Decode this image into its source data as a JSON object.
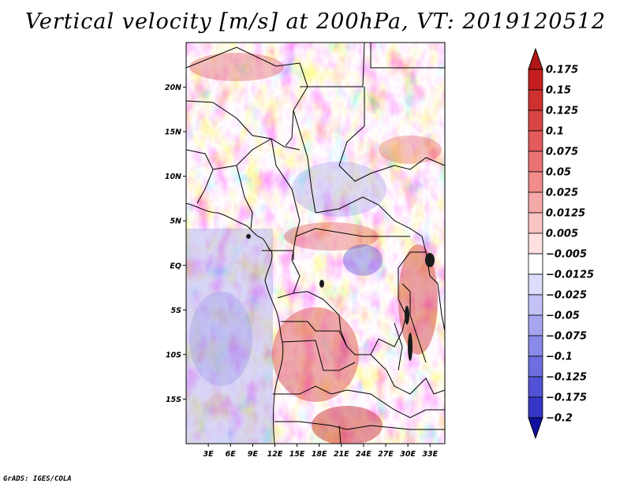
{
  "title": "Vertical velocity [m/s] at 200hPa, VT: 2019120512",
  "credit": "GrADS: IGES/COLA",
  "map": {
    "region": "Central Africa",
    "lon_range": [
      0,
      35
    ],
    "lat_range": [
      -20,
      25
    ],
    "lat_ticks": [
      {
        "value": 20,
        "label": "20N"
      },
      {
        "value": 15,
        "label": "15N"
      },
      {
        "value": 10,
        "label": "10N"
      },
      {
        "value": 5,
        "label": "5N"
      },
      {
        "value": 0,
        "label": "EQ"
      },
      {
        "value": -5,
        "label": "5S"
      },
      {
        "value": -10,
        "label": "10S"
      },
      {
        "value": -15,
        "label": "15S"
      }
    ],
    "lon_ticks": [
      {
        "value": 3,
        "label": "3E"
      },
      {
        "value": 6,
        "label": "6E"
      },
      {
        "value": 9,
        "label": "9E"
      },
      {
        "value": 12,
        "label": "12E"
      },
      {
        "value": 15,
        "label": "15E"
      },
      {
        "value": 18,
        "label": "18E"
      },
      {
        "value": 21,
        "label": "21E"
      },
      {
        "value": 24,
        "label": "24E"
      },
      {
        "value": 27,
        "label": "27E"
      },
      {
        "value": 30,
        "label": "30E"
      },
      {
        "value": 33,
        "label": "33E"
      }
    ]
  },
  "colorbar": {
    "levels": [
      {
        "label": "0.175",
        "color": "#c41e1e"
      },
      {
        "label": "0.15",
        "color": "#cf3030"
      },
      {
        "label": "0.125",
        "color": "#d94444"
      },
      {
        "label": "0.1",
        "color": "#e25a5a"
      },
      {
        "label": "0.075",
        "color": "#ea7272"
      },
      {
        "label": "0.05",
        "color": "#f08c8c"
      },
      {
        "label": "0.025",
        "color": "#f5a8a8"
      },
      {
        "label": "0.0125",
        "color": "#f9c4c4"
      },
      {
        "label": "0.005",
        "color": "#fde0e0"
      },
      {
        "label": "-0.005",
        "color": "#ffffff"
      },
      {
        "label": "-0.0125",
        "color": "#dcdcfb"
      },
      {
        "label": "-0.025",
        "color": "#c2c2f6"
      },
      {
        "label": "-0.05",
        "color": "#a6a6f0"
      },
      {
        "label": "-0.075",
        "color": "#8a8ae8"
      },
      {
        "label": "-0.1",
        "color": "#6e6ee0"
      },
      {
        "label": "-0.125",
        "color": "#5252d6"
      },
      {
        "label": "-0.175",
        "color": "#3636c8"
      },
      {
        "label": "-0.2",
        "color": "#2020b4"
      }
    ],
    "top_triangle_color": "#b01515",
    "bottom_triangle_color": "#1010a0"
  }
}
